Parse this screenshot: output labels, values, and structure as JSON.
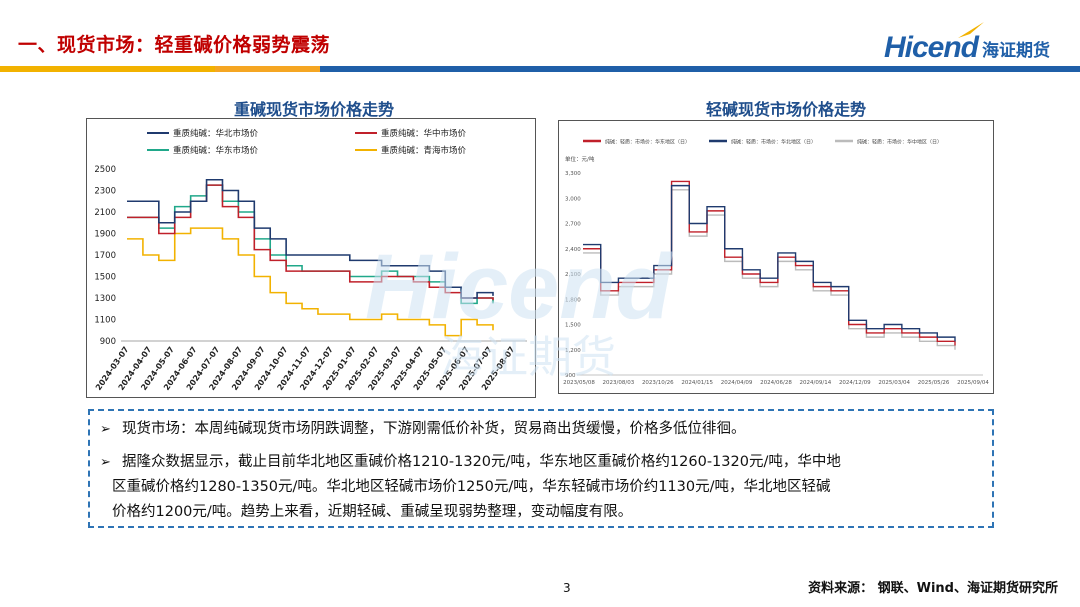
{
  "header": {
    "title": "一、现货市场：轻重碱价格弱势震荡",
    "logo_text": "Hicend",
    "logo_cn": "海证期货",
    "bar_colors": [
      "#f2b200",
      "#f5a623",
      "#1f5fa8"
    ]
  },
  "watermark": {
    "text": "Hicend",
    "cn": "海证期货"
  },
  "chart_data": [
    {
      "type": "line",
      "title": "重碱现货市场价格走势",
      "ylim": [
        900,
        2500
      ],
      "yticks": [
        900,
        1100,
        1300,
        1500,
        1700,
        1900,
        2100,
        2300,
        2500
      ],
      "xticks": [
        "2024-03-07",
        "2024-04-07",
        "2024-05-07",
        "2024-06-07",
        "2024-07-07",
        "2024-08-07",
        "2024-09-07",
        "2024-10-07",
        "2024-11-07",
        "2024-12-07",
        "2025-01-07",
        "2025-02-07",
        "2025-03-07",
        "2025-04-07",
        "2025-05-07",
        "2025-06-07",
        "2025-07-07",
        "2025-08-07"
      ],
      "legend_position": "top",
      "series": [
        {
          "name": "重质纯碱：华北市场价",
          "color": "#1f3a6e",
          "values": [
            2200,
            2200,
            2000,
            2100,
            2200,
            2400,
            2300,
            2200,
            1950,
            1850,
            1700,
            1700,
            1700,
            1700,
            1650,
            1650,
            1600,
            1600,
            1600,
            1550,
            1400,
            1300,
            1350,
            1320
          ]
        },
        {
          "name": "重质纯碱：华中市场价",
          "color": "#c0202a",
          "values": [
            2050,
            2050,
            1900,
            2050,
            2200,
            2350,
            2150,
            2050,
            1750,
            1650,
            1550,
            1550,
            1550,
            1550,
            1450,
            1450,
            1500,
            1500,
            1450,
            1400,
            1350,
            1300,
            1300,
            1280
          ]
        },
        {
          "name": "重质纯碱：华东市场价",
          "color": "#20a88a",
          "values": [
            2050,
            2050,
            1950,
            2150,
            2250,
            2350,
            2200,
            2100,
            1850,
            1700,
            1600,
            1550,
            1550,
            1550,
            1500,
            1500,
            1550,
            1500,
            1500,
            1450,
            1400,
            1250,
            1300,
            1250
          ]
        },
        {
          "name": "重质纯碱：青海市场价",
          "color": "#f2b200",
          "values": [
            1850,
            1700,
            1650,
            1900,
            1950,
            1950,
            1850,
            1700,
            1500,
            1350,
            1250,
            1200,
            1150,
            1150,
            1100,
            1100,
            1150,
            1100,
            1100,
            1050,
            950,
            1100,
            1050,
            1000
          ]
        }
      ]
    },
    {
      "type": "line",
      "title": "轻碱现货市场价格走势",
      "unit": "单位：元/吨",
      "ylim": [
        900,
        3300
      ],
      "yticks": [
        "900",
        "1,200",
        "1,500",
        "1,800",
        "2,100",
        "2,400",
        "2,700",
        "3,000",
        "3,300"
      ],
      "xticks": [
        "2023/05/08",
        "2023/08/03",
        "2023/10/26",
        "2024/01/15",
        "2024/04/09",
        "2024/06/28",
        "2024/09/14",
        "2024/12/09",
        "2025/03/04",
        "2025/05/26",
        "2025/09/04"
      ],
      "legend_position": "top",
      "series": [
        {
          "name": "纯碱：轻质：市场价：华东地区（日）",
          "color": "#c0202a",
          "values": [
            2400,
            1900,
            2000,
            2000,
            2150,
            3200,
            2600,
            2850,
            2300,
            2100,
            2000,
            2300,
            2200,
            1950,
            1900,
            1500,
            1400,
            1450,
            1400,
            1350,
            1300,
            1250
          ]
        },
        {
          "name": "纯碱：轻质：市场价：华北地区（日）",
          "color": "#1f3a6e",
          "values": [
            2450,
            2000,
            2050,
            2050,
            2200,
            3150,
            2700,
            2900,
            2400,
            2150,
            2050,
            2350,
            2250,
            2000,
            1950,
            1550,
            1450,
            1500,
            1450,
            1400,
            1350,
            1300
          ]
        },
        {
          "name": "纯碱：轻质：市场价：华中地区（日）",
          "color": "#bbbbbb",
          "values": [
            2350,
            1850,
            1950,
            1950,
            2100,
            3100,
            2550,
            2800,
            2250,
            2050,
            1950,
            2250,
            2150,
            1900,
            1850,
            1450,
            1350,
            1400,
            1350,
            1300,
            1250,
            1200
          ]
        }
      ]
    }
  ],
  "notes": [
    {
      "arrow": "➢",
      "text": "现货市场：本周纯碱现货市场阴跌调整，下游刚需低价补货，贸易商出货缓慢，价格多低位徘徊。"
    },
    {
      "arrow": "➢",
      "text": "据隆众数据显示，截止目前华北地区重碱价格1210-1320元/吨，华东地区重碱价格约1260-1320元/吨，华中地"
    },
    {
      "arrow": "",
      "text": "区重碱价格约1280-1350元/吨。华北地区轻碱市场价1250元/吨，华东轻碱市场价约1130元/吨，华北地区轻碱"
    },
    {
      "arrow": "",
      "text": "价格约1200元/吨。趋势上来看，近期轻碱、重碱呈现弱势整理，变动幅度有限。"
    }
  ],
  "page_number": "3",
  "source": "资料来源： 钢联、Wind、海证期货研究所"
}
